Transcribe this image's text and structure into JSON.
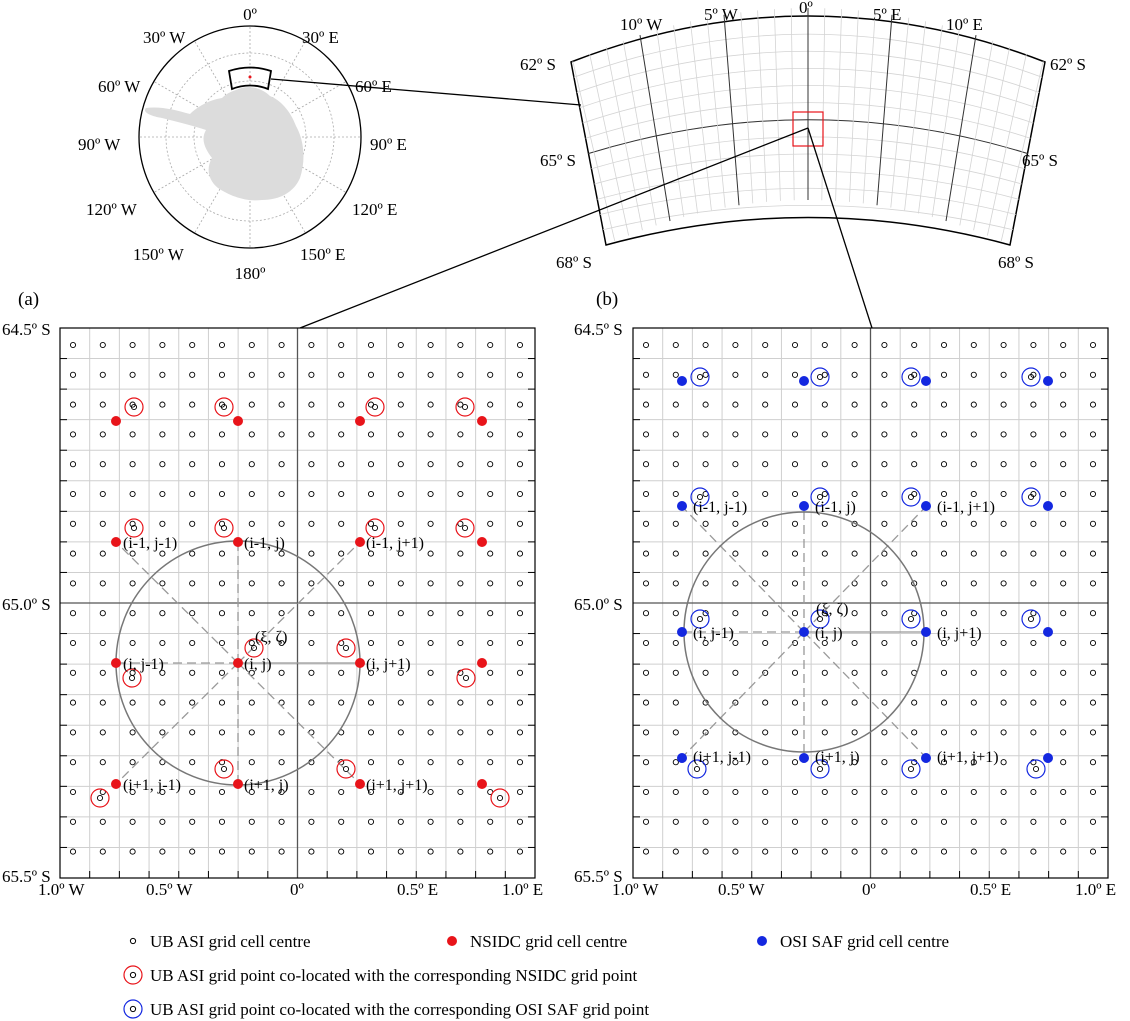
{
  "polar_map": {
    "lon_labels": [
      "0º",
      "30º E",
      "60º E",
      "90º E",
      "120º E",
      "150º E",
      "180º",
      "150º W",
      "120º W",
      "90º W",
      "60º W",
      "30º W"
    ]
  },
  "region_map": {
    "top_labels": [
      "10º W",
      "5º W",
      "0º",
      "5º E",
      "10º E"
    ],
    "left_labels": [
      "62º S",
      "65º S",
      "68º S"
    ],
    "right_labels": [
      "62º S",
      "65º S",
      "68º S"
    ]
  },
  "panel_a": {
    "tag": "(a)",
    "y_labels": [
      "64.5º S",
      "65.0º S",
      "65.5º S"
    ],
    "x_labels": [
      "1.0º W",
      "0.5º W",
      "0º",
      "0.5º E",
      "1.0º E"
    ],
    "xi_label": "(ξ, ζ)",
    "nb_labels": [
      "(i-1, j-1)",
      "(i-1, j)",
      "(i-1, j+1)",
      "(i, j-1)",
      "(i, j)",
      "(i, j+1)",
      "(i+1, j-1)",
      "(i+1, j)",
      "(i+1, j+1)"
    ],
    "color": "#e8141a"
  },
  "panel_b": {
    "tag": "(b)",
    "y_labels": [
      "64.5º S",
      "65.0º S",
      "65.5º S"
    ],
    "x_labels": [
      "1.0º W",
      "0.5º W",
      "0º",
      "0.5º E",
      "1.0º E"
    ],
    "xi_label": "(ξ, ζ)",
    "nb_labels": [
      "(i-1, j-1)",
      "(i-1, j)",
      "(i-1, j+1)",
      "(i, j-1)",
      "(i, j)",
      "(i, j+1)",
      "(i+1, j-1)",
      "(i+1, j)",
      "(i+1, j+1)"
    ],
    "color": "#1428e0"
  },
  "legend": {
    "ubasi": "UB ASI grid cell centre",
    "nsidc": "NSIDC grid cell centre",
    "osisaf": "OSI SAF grid cell centre",
    "co_nsidc": "UB ASI grid point co-located with the corresponding NSIDC grid point",
    "co_osisaf": "UB ASI grid point co-located with the corresponding OSI SAF grid point",
    "red": "#e8141a",
    "blue": "#1428e0"
  }
}
